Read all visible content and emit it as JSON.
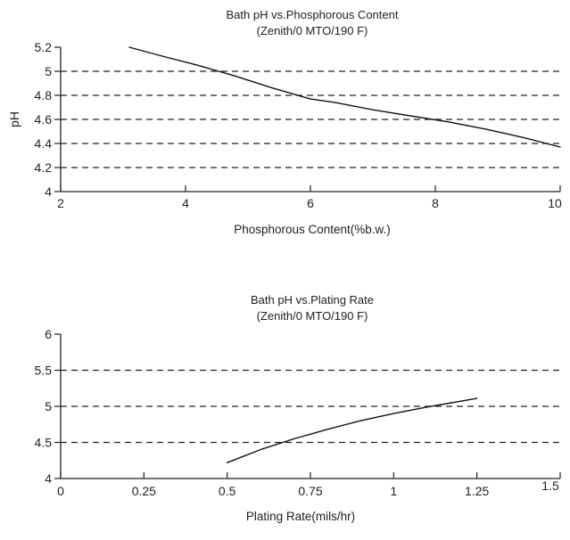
{
  "chart_data": [
    {
      "type": "line",
      "title": "Bath pH vs.Phosphorous Content",
      "subtitle": "(Zenith/0 MTO/190 F)",
      "xlabel": "Phosphorous Content(%b.w.)",
      "ylabel": "pH",
      "xlim": [
        2,
        10
      ],
      "ylim": [
        4,
        5.2
      ],
      "xticks": [
        2,
        4,
        6,
        8,
        10
      ],
      "xtick_labels": [
        "2",
        "4",
        "6",
        "8",
        "10"
      ],
      "yticks": [
        4,
        4.2,
        4.4,
        4.6,
        4.8,
        5,
        5.2
      ],
      "ytick_labels": [
        "4",
        "4.2",
        "4.4",
        "4.6",
        "4.8",
        "5",
        "5.2"
      ],
      "gridlines_y": [
        4.2,
        4.4,
        4.6,
        4.8,
        5
      ],
      "series": [
        {
          "name": "pH",
          "x": [
            3.1,
            3.6,
            4.2,
            4.8,
            5.4,
            6.0,
            6.4,
            7.0,
            7.6,
            8.2,
            8.8,
            9.4,
            10.0
          ],
          "y": [
            5.2,
            5.13,
            5.05,
            4.96,
            4.86,
            4.77,
            4.74,
            4.68,
            4.63,
            4.58,
            4.52,
            4.45,
            4.37
          ]
        }
      ]
    },
    {
      "type": "line",
      "title": "Bath pH vs.Plating Rate",
      "subtitle": "(Zenith/0 MTO/190 F)",
      "xlabel": "Plating Rate(mils/hr)",
      "ylabel": "",
      "xlim": [
        0,
        1.5
      ],
      "ylim": [
        4,
        6
      ],
      "xticks": [
        0,
        0.25,
        0.5,
        0.75,
        1,
        1.25,
        1.5
      ],
      "xtick_labels": [
        "0",
        "0.25",
        "0.5",
        "0.75",
        "1",
        "1.25",
        "1.5"
      ],
      "yticks": [
        4,
        4.5,
        5,
        5.5,
        6
      ],
      "ytick_labels": [
        "4",
        "4.5",
        "5",
        "5.5",
        "6"
      ],
      "gridlines_y": [
        4.5,
        5,
        5.5
      ],
      "series": [
        {
          "name": "pH",
          "x": [
            0.5,
            0.6,
            0.7,
            0.8,
            0.9,
            1.0,
            1.1,
            1.2,
            1.25
          ],
          "y": [
            4.22,
            4.4,
            4.55,
            4.68,
            4.8,
            4.9,
            4.99,
            5.07,
            5.11
          ]
        }
      ]
    }
  ]
}
